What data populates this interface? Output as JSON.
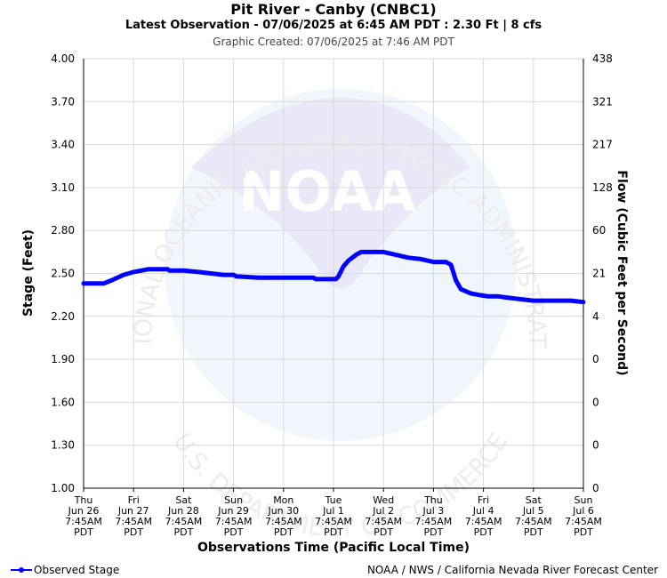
{
  "header": {
    "title": "Pit River - Canby (CNBC1)",
    "subtitle": "Latest Observation - 07/06/2025 at 6:45 AM PDT : 2.30 Ft | 8 cfs",
    "created": "Graphic Created: 07/06/2025 at 7:46 AM PDT"
  },
  "watermark": {
    "arc_top": "NATIONAL OCEANIC AND ATMOSPHERIC ADMINISTRATION",
    "arc_bottom": "U.S. DEPARTMENT OF COMMERCE",
    "logo_text": "NOAA"
  },
  "footer": {
    "legend_label": "Observed Stage",
    "credit": "NOAA / NWS / California Nevada River Forecast Center"
  },
  "colors": {
    "series": "#0000ff",
    "grid": "#d9d9d9",
    "watermark": "#eaf2fb"
  },
  "chart_data": {
    "type": "line",
    "xlabel": "Observations Time (Pacific Local Time)",
    "ylabel": "Stage (Feet)",
    "y2label": "Flow (Cubic Feet per Second)",
    "ylim": [
      1.0,
      4.0
    ],
    "y_ticks": [
      "1.00",
      "1.30",
      "1.60",
      "1.90",
      "2.20",
      "2.50",
      "2.80",
      "3.10",
      "3.40",
      "3.70",
      "4.00"
    ],
    "y2_ticks": [
      "0",
      "0",
      "0",
      "0",
      "4",
      "21",
      "60",
      "128",
      "217",
      "321",
      "438"
    ],
    "x_ticks": [
      [
        "Thu",
        "Jun 26",
        "7:45AM",
        "PDT"
      ],
      [
        "Fri",
        "Jun 27",
        "7:45AM",
        "PDT"
      ],
      [
        "Sat",
        "Jun 28",
        "7:45AM",
        "PDT"
      ],
      [
        "Sun",
        "Jun 29",
        "7:45AM",
        "PDT"
      ],
      [
        "Mon",
        "Jun 30",
        "7:45AM",
        "PDT"
      ],
      [
        "Tue",
        "Jul 1",
        "7:45AM",
        "PDT"
      ],
      [
        "Wed",
        "Jul 2",
        "7:45AM",
        "PDT"
      ],
      [
        "Thu",
        "Jul 3",
        "7:45AM",
        "PDT"
      ],
      [
        "Fri",
        "Jul 4",
        "7:45AM",
        "PDT"
      ],
      [
        "Sat",
        "Jul 5",
        "7:45AM",
        "PDT"
      ],
      [
        "Sun",
        "Jul 6",
        "7:45AM",
        "PDT"
      ]
    ],
    "grid": true,
    "legend_position": "bottom-left",
    "series": [
      {
        "name": "Observed Stage",
        "x": [
          0.0,
          0.4,
          0.55,
          0.8,
          1.0,
          1.15,
          1.3,
          1.5,
          1.68,
          1.72,
          2.0,
          2.3,
          2.55,
          2.8,
          3.0,
          3.05,
          3.5,
          4.0,
          4.6,
          4.65,
          4.9,
          5.0,
          5.05,
          5.1,
          5.2,
          5.3,
          5.45,
          5.55,
          5.8,
          6.0,
          6.25,
          6.5,
          6.75,
          7.0,
          7.25,
          7.35,
          7.45,
          7.55,
          7.75,
          7.9,
          8.1,
          8.3,
          8.5,
          8.75,
          9.0,
          9.25,
          9.5,
          9.75,
          10.0
        ],
        "y": [
          2.43,
          2.43,
          2.45,
          2.49,
          2.51,
          2.52,
          2.53,
          2.53,
          2.53,
          2.52,
          2.52,
          2.51,
          2.5,
          2.49,
          2.49,
          2.48,
          2.47,
          2.47,
          2.47,
          2.46,
          2.46,
          2.46,
          2.46,
          2.48,
          2.55,
          2.59,
          2.63,
          2.65,
          2.65,
          2.65,
          2.63,
          2.61,
          2.6,
          2.58,
          2.58,
          2.56,
          2.45,
          2.39,
          2.36,
          2.35,
          2.34,
          2.34,
          2.33,
          2.32,
          2.31,
          2.31,
          2.31,
          2.31,
          2.3
        ]
      }
    ]
  }
}
